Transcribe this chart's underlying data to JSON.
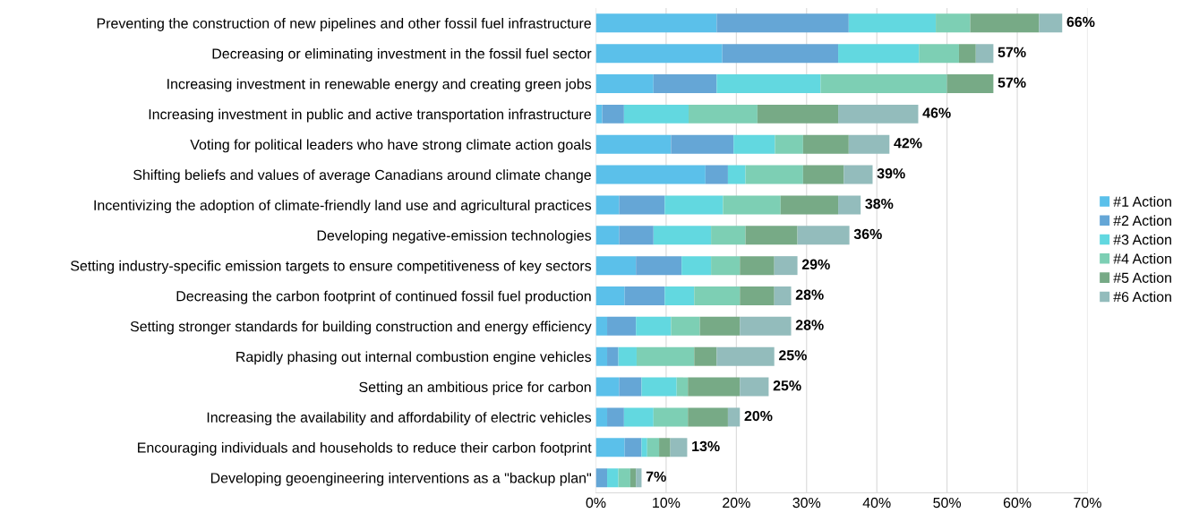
{
  "chart_data": {
    "type": "bar",
    "orientation": "horizontal",
    "stacked": true,
    "categories": [
      "Preventing the construction of new pipelines and other fossil fuel infrastructure",
      "Decreasing or eliminating investment in the fossil fuel sector",
      "Increasing investment in renewable energy and creating green jobs",
      "Increasing investment in public and active transportation infrastructure",
      "Voting for political leaders who have strong climate action goals",
      "Shifting beliefs and values of average Canadians around climate change",
      "Incentivizing the adoption of climate-friendly land use and agricultural practices",
      "Developing negative-emission technologies",
      "Setting industry-specific emission targets to ensure competitiveness of key sectors",
      "Decreasing the carbon footprint of continued fossil fuel production",
      "Setting stronger standards for building construction and energy efficiency",
      "Rapidly phasing out internal combustion engine vehicles",
      "Setting an ambitious price for carbon",
      "Increasing the availability and affordability of electric vehicles",
      "Encouraging individuals and households to reduce their carbon footprint",
      "Developing geoengineering interventions as a \"backup plan\""
    ],
    "series": [
      {
        "name": "#1 Action",
        "color": "#5bc0ea",
        "values": [
          17.2,
          18.0,
          8.2,
          0.9,
          10.7,
          15.6,
          3.3,
          3.3,
          5.7,
          4.1,
          1.6,
          1.6,
          3.3,
          1.6,
          4.1,
          0
        ]
      },
      {
        "name": "#2 Action",
        "color": "#65a6d6",
        "values": [
          18.8,
          16.5,
          9.0,
          3.1,
          8.9,
          3.2,
          6.5,
          4.9,
          6.5,
          5.7,
          4.1,
          1.6,
          3.2,
          2.4,
          2.4,
          1.6
        ]
      },
      {
        "name": "#3 Action",
        "color": "#62d8e0",
        "values": [
          12.4,
          11.5,
          14.8,
          9.2,
          5.9,
          2.5,
          8.3,
          8.2,
          4.2,
          4.2,
          5.0,
          2.6,
          5.0,
          4.2,
          0.8,
          1.6
        ]
      },
      {
        "name": "#4 Action",
        "color": "#7dcfb4",
        "values": [
          4.9,
          5.7,
          18.0,
          9.8,
          4.0,
          8.2,
          8.2,
          4.9,
          4.1,
          6.5,
          4.1,
          8.2,
          1.6,
          4.9,
          1.7,
          1.7
        ]
      },
      {
        "name": "#5 Action",
        "color": "#77aa86",
        "values": [
          9.8,
          2.4,
          6.6,
          11.5,
          6.5,
          5.8,
          8.2,
          7.4,
          4.9,
          4.9,
          5.7,
          3.2,
          7.4,
          5.7,
          1.6,
          0.8
        ]
      },
      {
        "name": "#6 Action",
        "color": "#93bcbc",
        "values": [
          3.3,
          2.5,
          0,
          11.4,
          5.8,
          4.1,
          3.2,
          7.4,
          3.3,
          2.4,
          7.3,
          8.2,
          4.1,
          1.7,
          2.4,
          0.8
        ]
      }
    ],
    "totals": [
      "66%",
      "57%",
      "57%",
      "46%",
      "42%",
      "39%",
      "38%",
      "36%",
      "29%",
      "28%",
      "28%",
      "25%",
      "25%",
      "20%",
      "13%",
      "7%"
    ],
    "xlim": [
      0,
      70
    ],
    "xticks": [
      {
        "value": 0,
        "label": "0%"
      },
      {
        "value": 10,
        "label": "10%"
      },
      {
        "value": 20,
        "label": "20%"
      },
      {
        "value": 30,
        "label": "30%"
      },
      {
        "value": 40,
        "label": "40%"
      },
      {
        "value": 50,
        "label": "50%"
      },
      {
        "value": 60,
        "label": "60%"
      },
      {
        "value": 70,
        "label": "70%"
      }
    ],
    "grid": "x",
    "legend": "right"
  }
}
